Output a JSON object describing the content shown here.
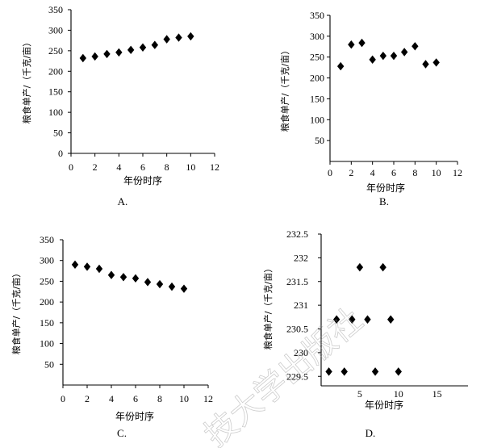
{
  "watermark": "技大学出版社",
  "chart_data": [
    {
      "type": "scatter",
      "panel_label": "A.",
      "xlabel": "年份时序",
      "ylabel": "粮食单产/（千克/亩）",
      "xlim": [
        0,
        12
      ],
      "ylim": [
        0,
        350
      ],
      "xticks": [
        "0",
        "2",
        "4",
        "6",
        "8",
        "10",
        "12"
      ],
      "yticks": [
        "0",
        "50",
        "100",
        "150",
        "200",
        "250",
        "300",
        "350"
      ],
      "x": [
        1,
        2,
        3,
        4,
        5,
        6,
        7,
        8,
        9,
        10
      ],
      "y": [
        232,
        236,
        242,
        246,
        252,
        258,
        264,
        278,
        282,
        285
      ],
      "grid": false,
      "marker": "diamond"
    },
    {
      "type": "scatter",
      "panel_label": "B.",
      "xlabel": "年份时序",
      "ylabel": "粮食单产/（千克/亩）",
      "xlim": [
        0,
        12
      ],
      "ylim": [
        0,
        350
      ],
      "xticks": [
        "0",
        "2",
        "4",
        "6",
        "8",
        "10",
        "12"
      ],
      "yticks": [
        "50",
        "100",
        "150",
        "200",
        "250",
        "300",
        "350"
      ],
      "x": [
        1,
        2,
        3,
        4,
        5,
        6,
        7,
        8,
        9,
        10
      ],
      "y": [
        228,
        280,
        284,
        244,
        253,
        253,
        262,
        276,
        233,
        237
      ],
      "grid": false,
      "marker": "diamond"
    },
    {
      "type": "scatter",
      "panel_label": "C.",
      "xlabel": "年份时序",
      "ylabel": "粮食单产/（千克/亩）",
      "xlim": [
        0,
        12
      ],
      "ylim": [
        0,
        350
      ],
      "xticks": [
        "0",
        "2",
        "4",
        "6",
        "8",
        "10",
        "12"
      ],
      "yticks": [
        "50",
        "100",
        "150",
        "200",
        "250",
        "300",
        "350"
      ],
      "x": [
        1,
        2,
        3,
        4,
        5,
        6,
        7,
        8,
        9,
        10
      ],
      "y": [
        290,
        285,
        280,
        265,
        260,
        257,
        248,
        243,
        237,
        232
      ],
      "grid": false,
      "marker": "diamond"
    },
    {
      "type": "scatter",
      "panel_label": "D.",
      "xlabel": "年份时序",
      "ylabel": "粮食单产/（千克/亩）",
      "xlim": [
        0,
        19
      ],
      "ylim": [
        229.3,
        232.5
      ],
      "xticks": [
        "5",
        "10",
        "15"
      ],
      "yticks": [
        "229.5",
        "230",
        "230.5",
        "231",
        "231.5",
        "232",
        "232.5"
      ],
      "x": [
        1,
        2,
        3,
        4,
        5,
        6,
        7,
        8,
        9,
        10
      ],
      "y": [
        229.6,
        230.7,
        229.6,
        230.7,
        231.8,
        230.7,
        229.6,
        231.8,
        230.7,
        229.6
      ],
      "grid": false,
      "marker": "diamond"
    }
  ]
}
